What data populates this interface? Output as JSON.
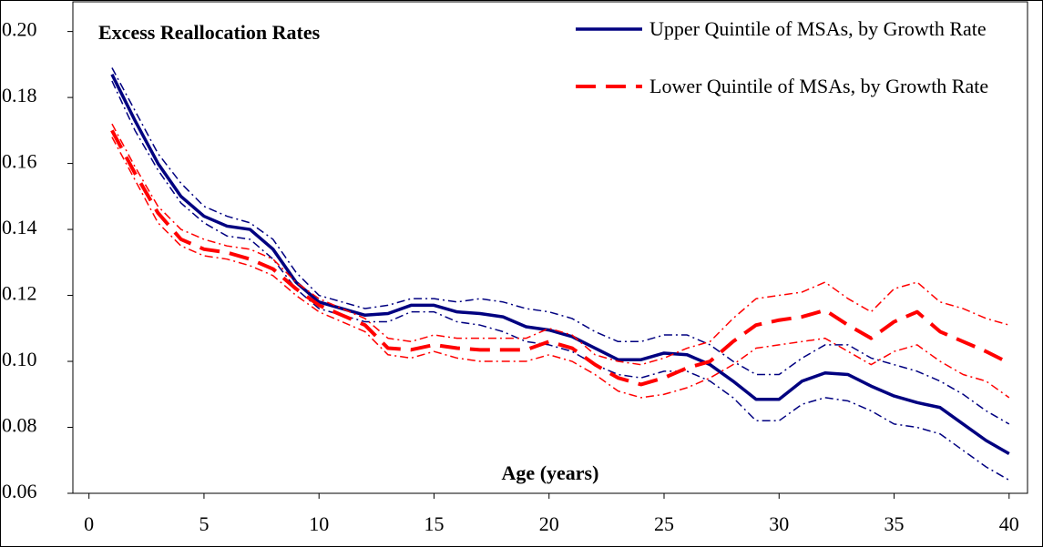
{
  "chart_data": {
    "type": "line",
    "title": "Excess Reallocation Rates",
    "x_label": "Age (years)",
    "x": [
      1,
      2,
      3,
      4,
      5,
      6,
      7,
      8,
      9,
      10,
      11,
      12,
      13,
      14,
      15,
      16,
      17,
      18,
      19,
      20,
      21,
      22,
      23,
      24,
      25,
      26,
      27,
      28,
      29,
      30,
      31,
      32,
      33,
      34,
      35,
      36,
      37,
      38,
      39,
      40
    ],
    "series": [
      {
        "name": "Upper Quintile of MSAs, by Growth Rate",
        "color": "#000080",
        "style": "solid",
        "values": [
          0.187,
          0.173,
          0.16,
          0.15,
          0.144,
          0.141,
          0.14,
          0.134,
          0.124,
          0.118,
          0.116,
          0.114,
          0.1145,
          0.117,
          0.117,
          0.115,
          0.1145,
          0.1135,
          0.1105,
          0.1095,
          0.1075,
          0.104,
          0.1005,
          0.1005,
          0.1025,
          0.102,
          0.099,
          0.094,
          0.0885,
          0.0885,
          0.094,
          0.0965,
          0.096,
          0.0925,
          0.0895,
          0.0875,
          0.086,
          0.081,
          0.076,
          0.072
        ],
        "upper": [
          0.189,
          0.176,
          0.163,
          0.154,
          0.147,
          0.144,
          0.142,
          0.137,
          0.127,
          0.12,
          0.118,
          0.116,
          0.117,
          0.119,
          0.119,
          0.118,
          0.119,
          0.118,
          0.116,
          0.115,
          0.113,
          0.109,
          0.106,
          0.106,
          0.108,
          0.108,
          0.105,
          0.1,
          0.096,
          0.096,
          0.101,
          0.105,
          0.105,
          0.101,
          0.099,
          0.097,
          0.094,
          0.09,
          0.085,
          0.081
        ],
        "lower": [
          0.185,
          0.17,
          0.158,
          0.148,
          0.142,
          0.138,
          0.137,
          0.131,
          0.122,
          0.116,
          0.114,
          0.112,
          0.112,
          0.115,
          0.115,
          0.112,
          0.111,
          0.109,
          0.106,
          0.105,
          0.103,
          0.099,
          0.096,
          0.095,
          0.097,
          0.097,
          0.094,
          0.089,
          0.082,
          0.082,
          0.087,
          0.089,
          0.088,
          0.085,
          0.081,
          0.08,
          0.078,
          0.073,
          0.068,
          0.064
        ]
      },
      {
        "name": "Lower Quintile of MSAs, by Growth Rate",
        "color": "#ff0000",
        "style": "dashed",
        "values": [
          0.17,
          0.157,
          0.145,
          0.137,
          0.134,
          0.133,
          0.131,
          0.128,
          0.122,
          0.117,
          0.114,
          0.111,
          0.104,
          0.1035,
          0.105,
          0.104,
          0.1035,
          0.1035,
          0.1035,
          0.106,
          0.104,
          0.099,
          0.095,
          0.093,
          0.095,
          0.098,
          0.1,
          0.106,
          0.111,
          0.1125,
          0.1135,
          0.1155,
          0.111,
          0.107,
          0.112,
          0.115,
          0.109,
          0.106,
          0.103,
          0.0995
        ],
        "upper": [
          0.172,
          0.159,
          0.147,
          0.14,
          0.137,
          0.135,
          0.134,
          0.131,
          0.124,
          0.119,
          0.116,
          0.113,
          0.107,
          0.106,
          0.108,
          0.107,
          0.107,
          0.107,
          0.107,
          0.11,
          0.108,
          0.102,
          0.1,
          0.099,
          0.101,
          0.104,
          0.106,
          0.113,
          0.119,
          0.12,
          0.121,
          0.124,
          0.119,
          0.115,
          0.122,
          0.124,
          0.118,
          0.116,
          0.113,
          0.111
        ],
        "lower": [
          0.168,
          0.155,
          0.142,
          0.135,
          0.132,
          0.131,
          0.129,
          0.126,
          0.12,
          0.115,
          0.112,
          0.109,
          0.102,
          0.101,
          0.103,
          0.101,
          0.1,
          0.1,
          0.1,
          0.102,
          0.1,
          0.096,
          0.091,
          0.089,
          0.09,
          0.092,
          0.095,
          0.099,
          0.104,
          0.105,
          0.106,
          0.107,
          0.103,
          0.099,
          0.103,
          0.105,
          0.1,
          0.096,
          0.094,
          0.089
        ]
      }
    ],
    "xlim": [
      -0.7,
      40.8
    ],
    "xticks": [
      0,
      5,
      10,
      15,
      20,
      25,
      30,
      35,
      40
    ],
    "ylim": [
      0.06,
      0.209
    ],
    "yticks": [
      {
        "value": 0.06,
        "label": "0.06"
      },
      {
        "value": 0.08,
        "label": "0.08"
      },
      {
        "value": 0.1,
        "label": "0.10"
      },
      {
        "value": 0.12,
        "label": "0.12"
      },
      {
        "value": 0.14,
        "label": "0.14"
      },
      {
        "value": 0.16,
        "label": "0.16"
      },
      {
        "value": 0.18,
        "label": "0.18"
      },
      {
        "value": 0.2,
        "label": "0.20"
      }
    ],
    "grid": false,
    "legend": "top-right"
  }
}
